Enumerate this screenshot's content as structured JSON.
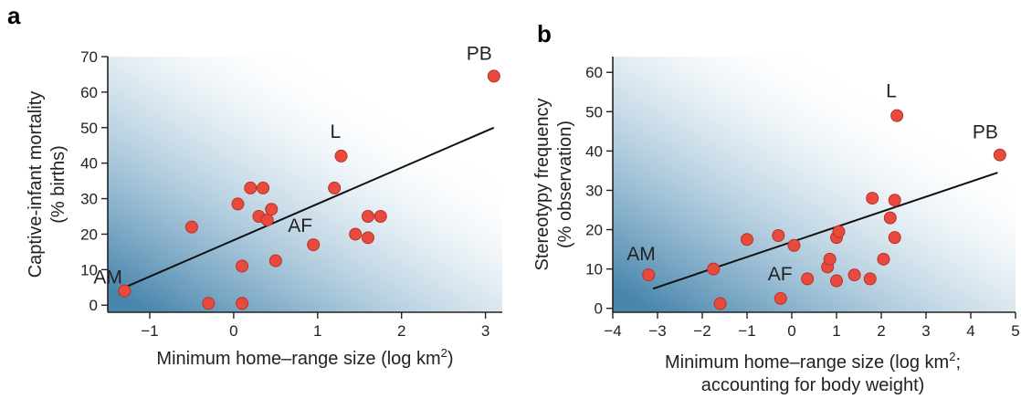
{
  "chart_data": [
    {
      "type": "scatter",
      "panel_label": "a",
      "title": "",
      "xlabel": "Minimum home–range size (log km",
      "xlabel_sup": "2",
      "xlabel_tail": ")",
      "ylabel_lines": [
        "Captive-infant mortality",
        "(% births)"
      ],
      "xlim": [
        -1.5,
        3.2
      ],
      "ylim": [
        -2,
        70
      ],
      "xticks": [
        -1,
        0,
        1,
        2,
        3
      ],
      "xtick_labels": [
        "−1",
        "0",
        "1",
        "2",
        "3"
      ],
      "yticks": [
        0,
        10,
        20,
        30,
        40,
        50,
        60,
        70
      ],
      "ytick_labels": [
        "0",
        "10",
        "20",
        "30",
        "40",
        "50",
        "60",
        "70"
      ],
      "trend_line": {
        "x": [
          -1.3,
          3.1
        ],
        "y": [
          5,
          50
        ]
      },
      "points": [
        {
          "x": -1.3,
          "y": 4
        },
        {
          "x": -0.5,
          "y": 22
        },
        {
          "x": -0.3,
          "y": 0.5
        },
        {
          "x": 0.1,
          "y": 0.5
        },
        {
          "x": 0.1,
          "y": 11
        },
        {
          "x": 0.05,
          "y": 28.5
        },
        {
          "x": 0.2,
          "y": 33
        },
        {
          "x": 0.35,
          "y": 33
        },
        {
          "x": 0.3,
          "y": 25
        },
        {
          "x": 0.4,
          "y": 24
        },
        {
          "x": 0.45,
          "y": 27
        },
        {
          "x": 0.5,
          "y": 12.5
        },
        {
          "x": 0.95,
          "y": 17
        },
        {
          "x": 1.2,
          "y": 33
        },
        {
          "x": 1.28,
          "y": 42
        },
        {
          "x": 1.45,
          "y": 20
        },
        {
          "x": 1.6,
          "y": 19
        },
        {
          "x": 1.6,
          "y": 25
        },
        {
          "x": 1.75,
          "y": 25
        },
        {
          "x": 3.1,
          "y": 64.5
        }
      ],
      "annotations": [
        {
          "text": "AM",
          "x": -1.3,
          "y": 4
        },
        {
          "text": "AF",
          "x": 0.95,
          "y": 17
        },
        {
          "text": "L",
          "x": 1.28,
          "y": 42
        },
        {
          "text": "PB",
          "x": 3.1,
          "y": 64.5
        }
      ]
    },
    {
      "type": "scatter",
      "panel_label": "b",
      "title": "",
      "xlabel": "Minimum home–range size (log km",
      "xlabel_sup": "2",
      "xlabel_tail": ";",
      "xlabel_line2": "accounting for body weight)",
      "ylabel_lines": [
        "Stereotypy frequency",
        "(% observation)"
      ],
      "xlim": [
        -4,
        5
      ],
      "ylim": [
        -1,
        64
      ],
      "xticks": [
        -4,
        -3,
        -2,
        -1,
        0,
        1,
        2,
        3,
        4,
        5
      ],
      "xtick_labels": [
        "−4",
        "−3",
        "−2",
        "−1",
        "0",
        "1",
        "2",
        "3",
        "4",
        "5"
      ],
      "yticks": [
        0,
        10,
        20,
        30,
        40,
        50,
        60
      ],
      "ytick_labels": [
        "0",
        "10",
        "20",
        "30",
        "40",
        "50",
        "60"
      ],
      "trend_line": {
        "x": [
          -3.1,
          4.6
        ],
        "y": [
          5,
          34.5
        ]
      },
      "points": [
        {
          "x": -3.2,
          "y": 8.5
        },
        {
          "x": -1.75,
          "y": 10
        },
        {
          "x": -1.6,
          "y": 1.2
        },
        {
          "x": -1.0,
          "y": 17.5
        },
        {
          "x": -0.3,
          "y": 18.5
        },
        {
          "x": -0.25,
          "y": 2.5
        },
        {
          "x": 0.05,
          "y": 16
        },
        {
          "x": 0.35,
          "y": 7.5
        },
        {
          "x": 0.8,
          "y": 10.5
        },
        {
          "x": 0.85,
          "y": 12.5
        },
        {
          "x": 1.0,
          "y": 7
        },
        {
          "x": 1.0,
          "y": 18
        },
        {
          "x": 1.05,
          "y": 19.5
        },
        {
          "x": 1.4,
          "y": 8.5
        },
        {
          "x": 1.75,
          "y": 7.5
        },
        {
          "x": 1.8,
          "y": 28
        },
        {
          "x": 2.05,
          "y": 12.5
        },
        {
          "x": 2.2,
          "y": 23
        },
        {
          "x": 2.3,
          "y": 27.5
        },
        {
          "x": 2.3,
          "y": 18
        },
        {
          "x": 2.35,
          "y": 49
        },
        {
          "x": 4.65,
          "y": 39
        }
      ],
      "annotations": [
        {
          "text": "AM",
          "x": -3.2,
          "y": 8.5
        },
        {
          "text": "AF",
          "x": -0.25,
          "y": 2.5
        },
        {
          "text": "L",
          "x": 2.35,
          "y": 49
        },
        {
          "text": "PB",
          "x": 4.65,
          "y": 39
        }
      ]
    }
  ]
}
